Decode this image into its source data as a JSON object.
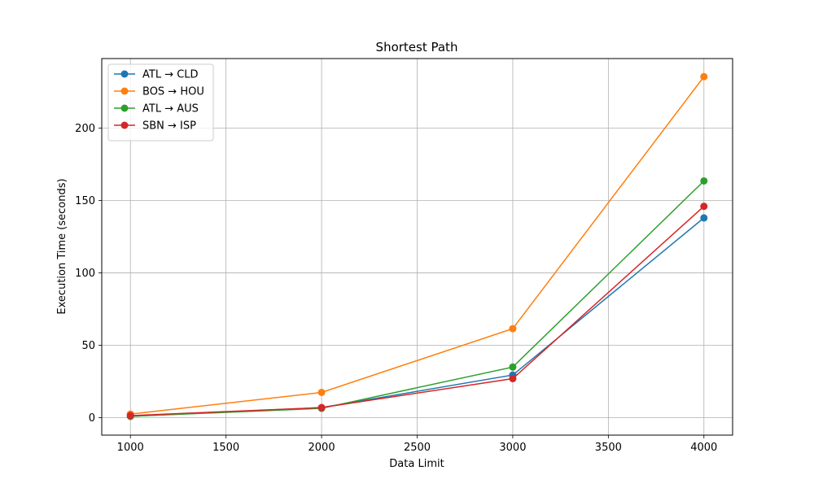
{
  "chart_data": {
    "type": "line",
    "title": "Shortest Path",
    "xlabel": "Data Limit",
    "ylabel": "Execution Time (seconds)",
    "x": [
      1000,
      2000,
      3000,
      4000
    ],
    "xlim": [
      850,
      4150
    ],
    "ylim": [
      -12,
      248
    ],
    "xticks": [
      1000,
      1500,
      2000,
      2500,
      3000,
      3500,
      4000
    ],
    "yticks": [
      0,
      50,
      100,
      150,
      200
    ],
    "grid": true,
    "legend_position": "top-left",
    "series": [
      {
        "name": "ATL → CLD",
        "color": "#1f77b4",
        "values": [
          1,
          7,
          29.5,
          138
        ]
      },
      {
        "name": "BOS → HOU",
        "color": "#ff7f0e",
        "values": [
          2.5,
          17.5,
          61.5,
          235.5
        ]
      },
      {
        "name": "ATL → AUS",
        "color": "#2ca02c",
        "values": [
          1,
          6.5,
          35,
          163.5
        ]
      },
      {
        "name": "SBN → ISP",
        "color": "#d62728",
        "values": [
          1.5,
          7,
          27,
          146
        ]
      }
    ]
  }
}
